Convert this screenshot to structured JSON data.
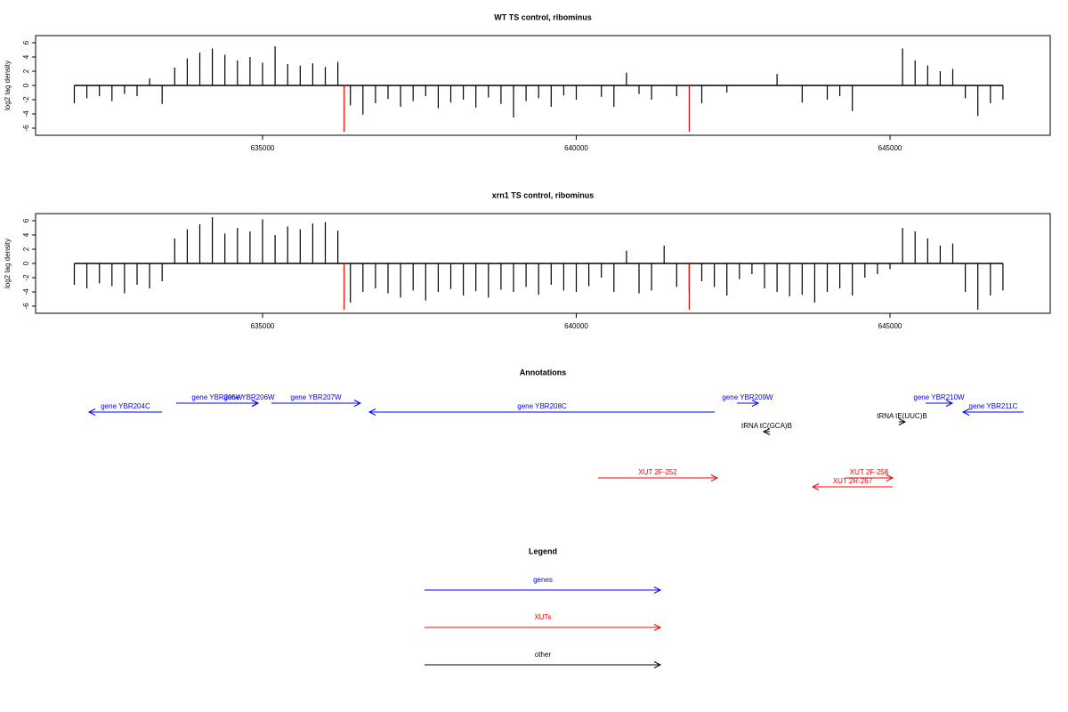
{
  "chart_data": [
    {
      "type": "bar",
      "title": "WT TS control, ribominus",
      "y_label": "log2 tag density",
      "xlim": [
        631383,
        647553
      ],
      "xticks": [
        635000,
        640000,
        645000
      ],
      "ylim": [
        -7,
        7
      ],
      "yticks": [
        -6,
        -4,
        -2,
        0,
        2,
        4,
        6
      ],
      "series": [
        {
          "color": "#000000",
          "x": [
            632000,
            632200,
            632400,
            632600,
            632800,
            633000,
            633200,
            633400,
            633600,
            633800,
            634000,
            634200,
            634400,
            634600,
            634800,
            635000,
            635200,
            635400,
            635600,
            635800,
            636000,
            636200,
            636400,
            636600,
            636800,
            637000,
            637200,
            637400,
            637600,
            637800,
            638000,
            638200,
            638400,
            638600,
            638800,
            639000,
            639200,
            639400,
            639600,
            639800,
            640000,
            640200,
            640400,
            640600,
            640800,
            641000,
            641200,
            641400,
            641600,
            641800,
            642000,
            642200,
            642400,
            642600,
            642800,
            643000,
            643200,
            643400,
            643600,
            643800,
            644000,
            644200,
            644400,
            644600,
            644800,
            645000,
            645200,
            645400,
            645600,
            645800,
            646000,
            646200,
            646400,
            646600,
            646800
          ],
          "values": [
            -2.5,
            -1.8,
            -1.5,
            -2.2,
            -1.2,
            -1.5,
            1.0,
            -2.6,
            2.5,
            3.8,
            4.6,
            5.2,
            4.3,
            3.5,
            4.0,
            3.2,
            5.5,
            3.0,
            2.8,
            3.1,
            2.6,
            3.3,
            -2.8,
            -4.1,
            -2.5,
            -1.9,
            -3.0,
            -2.2,
            -1.5,
            -3.2,
            -2.4,
            -2.0,
            -3.1,
            -1.7,
            -2.6,
            -4.5,
            -2.2,
            -1.8,
            -3.0,
            -1.4,
            -2.0,
            0,
            -1.6,
            -3.0,
            1.8,
            -1.2,
            -2.0,
            0,
            -1.5,
            0,
            -2.5,
            0,
            -1.0,
            0,
            0,
            0,
            1.6,
            0,
            -2.4,
            0,
            -2.0,
            -1.5,
            -3.6,
            0,
            0,
            0,
            5.2,
            3.5,
            2.8,
            2.0,
            2.3,
            -1.8,
            -4.3,
            -2.5,
            -2.0
          ]
        },
        {
          "color": "#ff0000",
          "x": [
            636300,
            641800
          ],
          "values": [
            -6.5,
            -6.5
          ]
        }
      ]
    },
    {
      "type": "bar",
      "title": "xrn1 TS control, ribominus",
      "y_label": "log2 tag density",
      "xlim": [
        631383,
        647553
      ],
      "xticks": [
        635000,
        640000,
        645000
      ],
      "ylim": [
        -7,
        7
      ],
      "yticks": [
        -6,
        -4,
        -2,
        0,
        2,
        4,
        6
      ],
      "series": [
        {
          "color": "#000000",
          "x": [
            632000,
            632200,
            632400,
            632600,
            632800,
            633000,
            633200,
            633400,
            633600,
            633800,
            634000,
            634200,
            634400,
            634600,
            634800,
            635000,
            635200,
            635400,
            635600,
            635800,
            636000,
            636200,
            636400,
            636600,
            636800,
            637000,
            637200,
            637400,
            637600,
            637800,
            638000,
            638200,
            638400,
            638600,
            638800,
            639000,
            639200,
            639400,
            639600,
            639800,
            640000,
            640200,
            640400,
            640600,
            640800,
            641000,
            641200,
            641400,
            641600,
            641800,
            642000,
            642200,
            642400,
            642600,
            642800,
            643000,
            643200,
            643400,
            643600,
            643800,
            644000,
            644200,
            644400,
            644600,
            644800,
            645000,
            645200,
            645400,
            645600,
            645800,
            646000,
            646200,
            646400,
            646600,
            646800
          ],
          "values": [
            -3,
            -3.5,
            -2.8,
            -3.2,
            -4.2,
            -3.0,
            -3.5,
            -2.5,
            3.5,
            4.8,
            5.5,
            6.5,
            4.2,
            5.0,
            4.5,
            6.2,
            4.0,
            5.2,
            4.8,
            5.6,
            5.8,
            4.6,
            -5.5,
            -4.0,
            -3.5,
            -4.2,
            -4.8,
            -3.8,
            -5.2,
            -4.0,
            -3.6,
            -4.5,
            -3.9,
            -4.8,
            -3.7,
            -4.0,
            -3.3,
            -4.4,
            -3.0,
            -3.8,
            -4.0,
            -3.2,
            -2.0,
            -4.0,
            1.8,
            -4.2,
            -3.8,
            2.5,
            -3.3,
            -4.2,
            -2.5,
            -3.3,
            -4.5,
            -2.2,
            -1.5,
            -3.5,
            -4.0,
            -4.6,
            -4.4,
            -5.5,
            -4.0,
            -3.5,
            -4.5,
            -2.0,
            -1.5,
            -0.8,
            5.0,
            4.5,
            3.5,
            2.5,
            2.8,
            -4.0,
            -6.5,
            -4.5,
            -3.8
          ]
        },
        {
          "color": "#ff0000",
          "x": [
            636300,
            641800
          ],
          "values": [
            -6.5,
            -6.5
          ]
        }
      ]
    }
  ],
  "annotations": {
    "title": "Annotations",
    "features": [
      {
        "label": "gene YBR204C",
        "from": 633397,
        "to": 632234,
        "color": "#0000ff"
      },
      {
        "label": "gene YBR205W",
        "from": 633624,
        "to": 634929,
        "color": "#0000ff"
      },
      {
        "label": "gene YBR206W",
        "from": 634645,
        "to": 634929,
        "color": "#0000ff"
      },
      {
        "label": "gene YBR207W",
        "from": 635142,
        "to": 636560,
        "color": "#0000ff"
      },
      {
        "label": "gene YBR208C",
        "from": 642205,
        "to": 636702,
        "color": "#0000ff"
      },
      {
        "label": "gene YBR209W",
        "from": 642560,
        "to": 642900,
        "color": "#0000ff"
      },
      {
        "label": "tRNA tC(GCA)B",
        "from": 643085,
        "to": 642985,
        "color": "#000000"
      },
      {
        "label": "gene YBR210W",
        "from": 645567,
        "to": 645993,
        "color": "#0000ff"
      },
      {
        "label": "tRNA tE(UUC)B",
        "from": 645141,
        "to": 645241,
        "color": "#000000"
      },
      {
        "label": "gene YBR211C",
        "from": 647127,
        "to": 646163,
        "color": "#0000ff"
      },
      {
        "label": "XUT 2F-252",
        "from": 640347,
        "to": 642248,
        "color": "#ff0000"
      },
      {
        "label": "XUT 2F-258",
        "from": 644290,
        "to": 645042,
        "color": "#ff0000"
      },
      {
        "label": "XUT 2R-267",
        "from": 645042,
        "to": 643766,
        "color": "#ff0000"
      }
    ]
  },
  "legend": {
    "title": "Legend",
    "entries": [
      {
        "label": "genes",
        "color": "#0000ff"
      },
      {
        "label": "XUTs",
        "color": "#ff0000"
      },
      {
        "label": "other",
        "color": "#000000"
      }
    ]
  }
}
